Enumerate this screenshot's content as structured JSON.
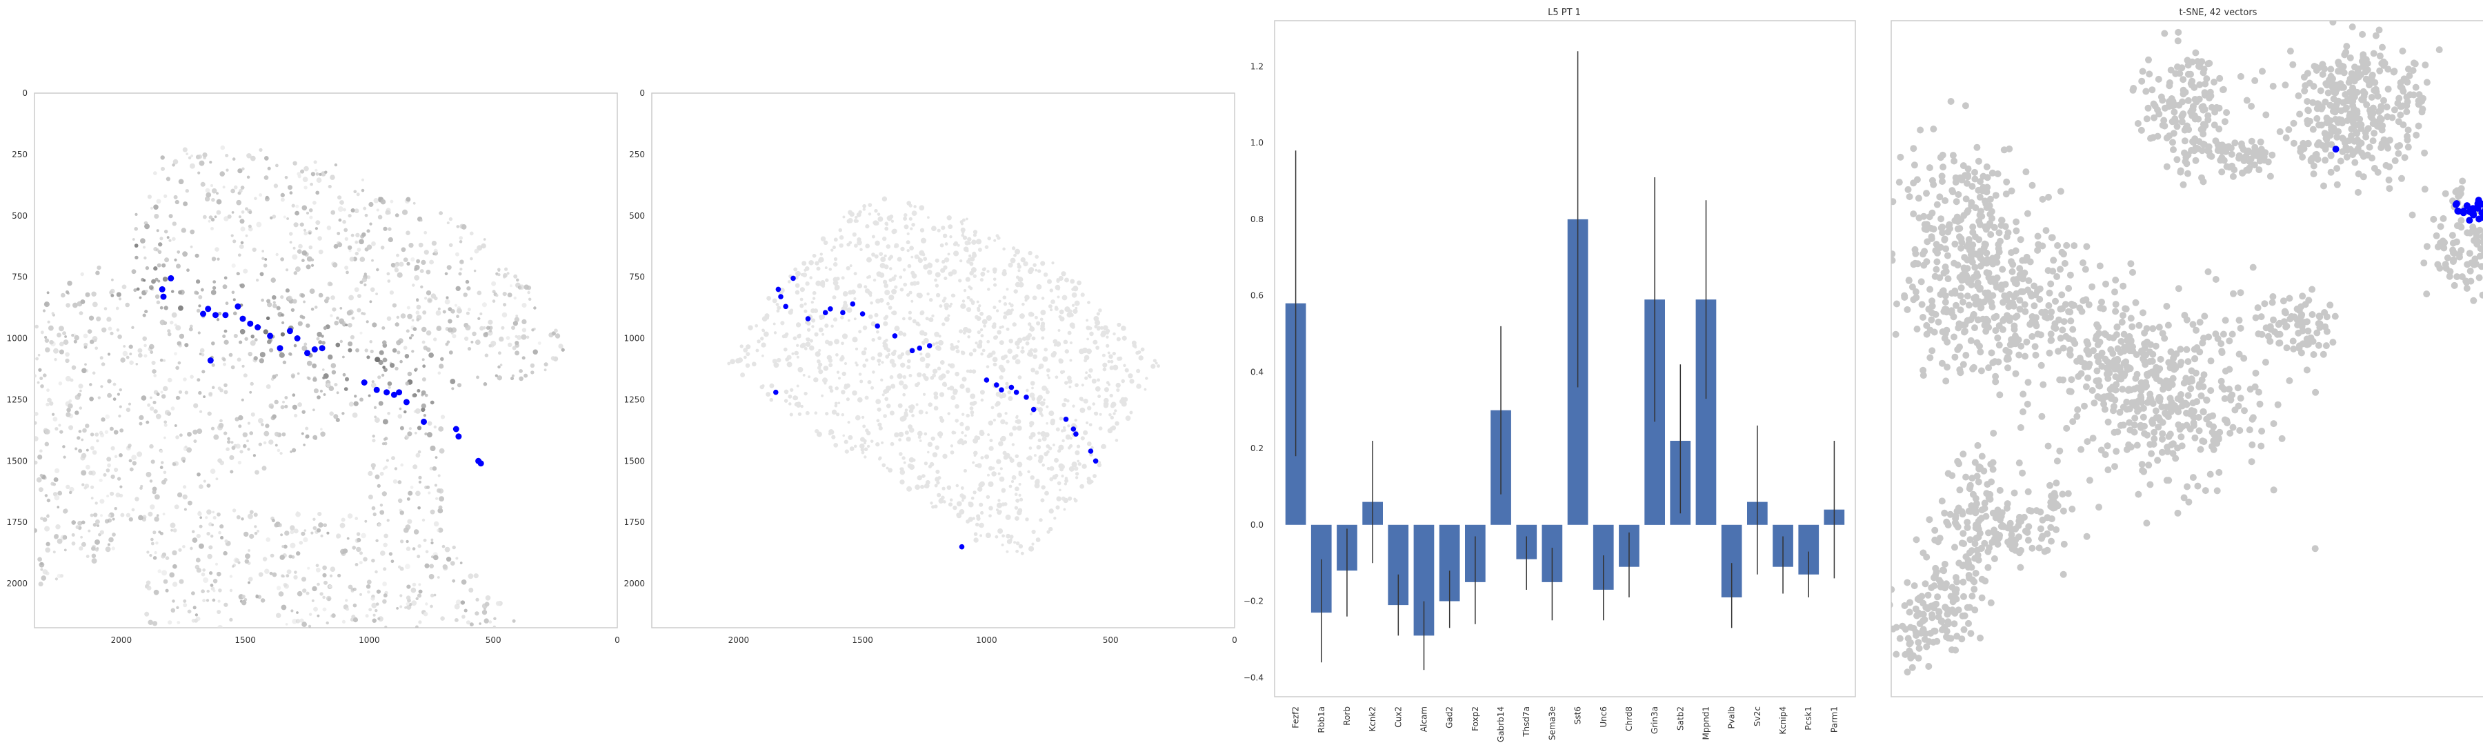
{
  "colors": {
    "highlight": "#0000ff",
    "cell_gray": "#c8c8c8",
    "cell_light": "#e3e3e3",
    "bar": "#4c72b0",
    "error_bar": "#333333",
    "frame": "#cccccc"
  },
  "chart_data": [
    {
      "type": "scatter",
      "title": "",
      "xlabel": "",
      "ylabel": "",
      "xlim": [
        2350,
        0
      ],
      "ylim": [
        2180,
        0
      ],
      "xticks": [
        "2000",
        "1500",
        "1000",
        "500",
        "0"
      ],
      "xtick_values": [
        2000,
        1500,
        1000,
        500,
        0
      ],
      "yticks": [
        "0",
        "250",
        "500",
        "750",
        "1000",
        "1250",
        "1500",
        "1750",
        "2000"
      ],
      "ytick_values": [
        0,
        250,
        500,
        750,
        1000,
        1250,
        1500,
        1750,
        2000
      ],
      "background_cells": "grayscale expression map",
      "highlight_color": "#0000ff",
      "highlighted_points": [
        [
          1835,
          800
        ],
        [
          1830,
          830
        ],
        [
          1800,
          755
        ],
        [
          1670,
          900
        ],
        [
          1650,
          880
        ],
        [
          1620,
          905
        ],
        [
          1580,
          905
        ],
        [
          1530,
          870
        ],
        [
          1510,
          920
        ],
        [
          1480,
          940
        ],
        [
          1450,
          955
        ],
        [
          1400,
          990
        ],
        [
          1360,
          1040
        ],
        [
          1320,
          970
        ],
        [
          1290,
          1000
        ],
        [
          1250,
          1060
        ],
        [
          1220,
          1045
        ],
        [
          1190,
          1040
        ],
        [
          1640,
          1090
        ],
        [
          1020,
          1180
        ],
        [
          970,
          1210
        ],
        [
          930,
          1220
        ],
        [
          900,
          1230
        ],
        [
          880,
          1220
        ],
        [
          850,
          1260
        ],
        [
          780,
          1340
        ],
        [
          650,
          1370
        ],
        [
          640,
          1400
        ],
        [
          560,
          1500
        ],
        [
          550,
          1510
        ]
      ]
    },
    {
      "type": "scatter",
      "title": "",
      "xlabel": "",
      "ylabel": "",
      "xlim": [
        2350,
        0
      ],
      "ylim": [
        2180,
        0
      ],
      "xticks": [
        "2000",
        "1500",
        "1000",
        "500",
        "0"
      ],
      "xtick_values": [
        2000,
        1500,
        1000,
        500,
        0
      ],
      "yticks": [
        "0",
        "250",
        "500",
        "750",
        "1000",
        "1250",
        "1500",
        "1750",
        "2000"
      ],
      "ytick_values": [
        0,
        250,
        500,
        750,
        1000,
        1250,
        1500,
        1750,
        2000
      ],
      "background_cells": "light gray cell segmentation",
      "highlight_color": "#0000ff",
      "highlighted_points": [
        [
          1840,
          800
        ],
        [
          1830,
          830
        ],
        [
          1810,
          870
        ],
        [
          1780,
          755
        ],
        [
          1720,
          920
        ],
        [
          1650,
          895
        ],
        [
          1630,
          880
        ],
        [
          1580,
          895
        ],
        [
          1540,
          860
        ],
        [
          1500,
          900
        ],
        [
          1440,
          950
        ],
        [
          1370,
          990
        ],
        [
          1300,
          1050
        ],
        [
          1270,
          1040
        ],
        [
          1230,
          1030
        ],
        [
          1000,
          1170
        ],
        [
          960,
          1190
        ],
        [
          940,
          1210
        ],
        [
          900,
          1200
        ],
        [
          880,
          1220
        ],
        [
          840,
          1240
        ],
        [
          810,
          1290
        ],
        [
          680,
          1330
        ],
        [
          650,
          1370
        ],
        [
          640,
          1390
        ],
        [
          560,
          1500
        ],
        [
          580,
          1460
        ],
        [
          1850,
          1220
        ],
        [
          1100,
          1850
        ]
      ]
    },
    {
      "type": "bar",
      "title": "L5 PT 1",
      "xlabel": "",
      "ylabel": "",
      "ylim": [
        -0.45,
        1.32
      ],
      "yticks": [
        "−0.4",
        "−0.2",
        "0.0",
        "0.2",
        "0.4",
        "0.6",
        "0.8",
        "1.0",
        "1.2"
      ],
      "ytick_values": [
        -0.4,
        -0.2,
        0.0,
        0.2,
        0.4,
        0.6,
        0.8,
        1.0,
        1.2
      ],
      "categories": [
        "Fezf2",
        "Rbb1a",
        "Rorb",
        "Kcnk2",
        "Cux2",
        "Alcam",
        "Gad2",
        "Foxp2",
        "Gabrb14",
        "Thsd7a",
        "Sema3e",
        "Sst6",
        "Unc6",
        "Chrd8",
        "Grin3a",
        "Satb2",
        "Mppnd1",
        "Pvalb",
        "Sv2c",
        "Kcnip4",
        "Pcsk1",
        "Parm1"
      ],
      "values": [
        0.58,
        -0.23,
        -0.12,
        0.06,
        -0.21,
        -0.29,
        -0.2,
        -0.15,
        0.3,
        -0.09,
        -0.15,
        0.8,
        -0.17,
        -0.11,
        0.59,
        0.22,
        0.59,
        -0.19,
        0.06,
        -0.11,
        -0.13,
        0.04
      ],
      "err_low": [
        0.18,
        -0.36,
        -0.24,
        -0.1,
        -0.29,
        -0.38,
        -0.27,
        -0.26,
        0.08,
        -0.17,
        -0.25,
        0.36,
        -0.25,
        -0.19,
        0.27,
        0.03,
        0.33,
        -0.27,
        -0.13,
        -0.18,
        -0.19,
        -0.14
      ],
      "err_high": [
        0.98,
        -0.09,
        -0.01,
        0.22,
        -0.13,
        -0.2,
        -0.12,
        -0.03,
        0.52,
        -0.03,
        -0.06,
        1.24,
        -0.08,
        -0.02,
        0.91,
        0.42,
        0.85,
        -0.1,
        0.26,
        -0.03,
        -0.07,
        0.22
      ]
    },
    {
      "type": "scatter",
      "title": "t-SNE, 42 vectors",
      "xlabel": "",
      "ylabel": "",
      "grid": false,
      "axes_ticks": false,
      "background_color": "#c8c8c8",
      "highlight_color": "#0000ff",
      "highlighted_points": [
        [
          0.91,
          0.28
        ],
        [
          0.885,
          0.28
        ],
        [
          0.9,
          0.27
        ],
        [
          0.895,
          0.29
        ],
        [
          0.87,
          0.275
        ],
        [
          0.68,
          0.19
        ]
      ]
    }
  ]
}
